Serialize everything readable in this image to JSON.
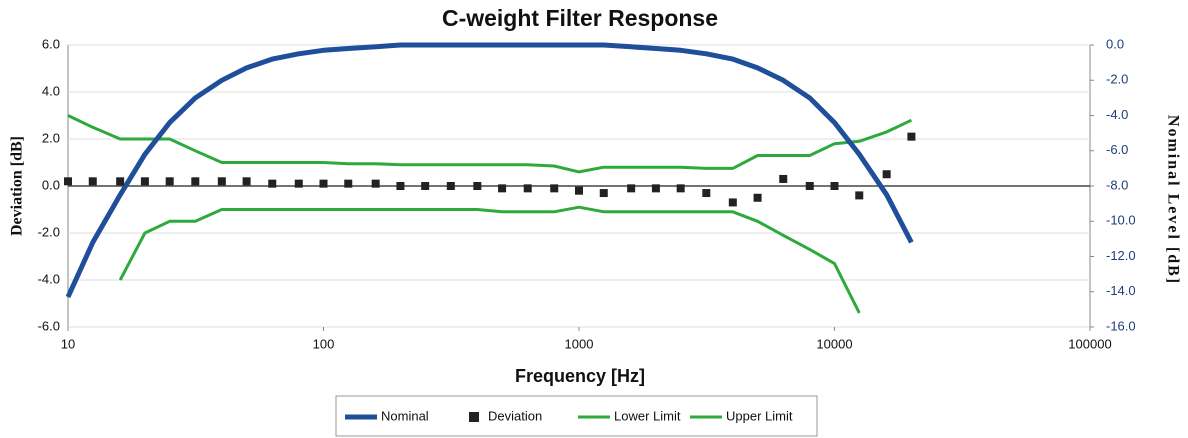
{
  "chart_data": {
    "type": "line",
    "title": "C-weight Filter Response",
    "xlabel": "Frequency [Hz]",
    "ylabel": "Deviation [dB]",
    "y2label": "Nominal Level [dB]",
    "xscale": "log",
    "xlim": [
      10,
      100000
    ],
    "xticks": [
      10,
      100,
      1000,
      10000,
      100000
    ],
    "ylim": [
      -6,
      6
    ],
    "yticks": [
      {
        "value": 6,
        "label": "6.0"
      },
      {
        "value": 4,
        "label": "4.0"
      },
      {
        "value": 2,
        "label": "2.0"
      },
      {
        "value": 0,
        "label": "0.0"
      },
      {
        "value": -2,
        "label": "-2.0"
      },
      {
        "value": -4,
        "label": "-4.0"
      },
      {
        "value": -6,
        "label": "-6.0"
      }
    ],
    "y2lim": [
      -16,
      0
    ],
    "y2ticks": [
      {
        "value": 0,
        "label": "0.0"
      },
      {
        "value": -2,
        "label": "-2.0"
      },
      {
        "value": -4,
        "label": "-4.0"
      },
      {
        "value": -6,
        "label": "-6.0"
      },
      {
        "value": -8,
        "label": "-8.0"
      },
      {
        "value": -10,
        "label": "-10.0"
      },
      {
        "value": -12,
        "label": "-12.0"
      },
      {
        "value": -14,
        "label": "-14.0"
      },
      {
        "value": -16,
        "label": "-16.0"
      }
    ],
    "grid": true,
    "legend": "bottom",
    "x": [
      10,
      12.5,
      16,
      20,
      25,
      31.5,
      40,
      50,
      63,
      80,
      100,
      125,
      160,
      200,
      250,
      315,
      400,
      500,
      630,
      800,
      1000,
      1250,
      1600,
      2000,
      2500,
      3150,
      4000,
      5000,
      6300,
      8000,
      10000,
      12500,
      16000,
      20000
    ],
    "series": [
      {
        "name": "Nominal",
        "color": "#1f4e9a",
        "axis": "y2",
        "style": "line",
        "values": [
          -14.3,
          -11.2,
          -8.5,
          -6.2,
          -4.4,
          -3.0,
          -2.0,
          -1.3,
          -0.8,
          -0.5,
          -0.3,
          -0.2,
          -0.1,
          0,
          0,
          0,
          0,
          0,
          0,
          0,
          0,
          0,
          -0.1,
          -0.2,
          -0.3,
          -0.5,
          -0.8,
          -1.3,
          -2.0,
          -3.0,
          -4.4,
          -6.2,
          -8.5,
          -11.2
        ]
      },
      {
        "name": "Deviation",
        "color": "#222222",
        "axis": "y",
        "style": "marker",
        "values": [
          0.2,
          0.2,
          0.2,
          0.2,
          0.2,
          0.2,
          0.2,
          0.2,
          0.1,
          0.1,
          0.1,
          0.1,
          0.1,
          0.0,
          0.0,
          0.0,
          0.0,
          -0.1,
          -0.1,
          -0.1,
          -0.2,
          -0.3,
          -0.1,
          -0.1,
          -0.1,
          -0.3,
          -0.7,
          -0.5,
          0.3,
          0.0,
          0.0,
          -0.4,
          0.5,
          2.1
        ]
      },
      {
        "name": "Lower Limit",
        "color": "#2eaa3c",
        "axis": "y",
        "style": "line",
        "values": [
          null,
          null,
          -4.0,
          -2.0,
          -1.5,
          -1.5,
          -1.0,
          -1.0,
          -1.0,
          -1.0,
          -1.0,
          -1.0,
          -1.0,
          -1.0,
          -1.0,
          -1.0,
          -1.0,
          -1.1,
          -1.1,
          -1.1,
          -0.9,
          -1.1,
          -1.1,
          -1.1,
          -1.1,
          -1.1,
          -1.1,
          -1.5,
          -2.1,
          -2.7,
          -3.3,
          -5.4,
          null,
          null
        ]
      },
      {
        "name": "Upper Limit",
        "color": "#2eaa3c",
        "axis": "y",
        "style": "line",
        "values": [
          3.0,
          2.5,
          2.0,
          2.0,
          2.0,
          1.5,
          1.0,
          1.0,
          1.0,
          1.0,
          1.0,
          0.95,
          0.95,
          0.9,
          0.9,
          0.9,
          0.9,
          0.9,
          0.9,
          0.85,
          0.6,
          0.8,
          0.8,
          0.8,
          0.8,
          0.75,
          0.75,
          1.3,
          1.3,
          1.3,
          1.8,
          1.9,
          2.3,
          2.8
        ]
      }
    ]
  }
}
